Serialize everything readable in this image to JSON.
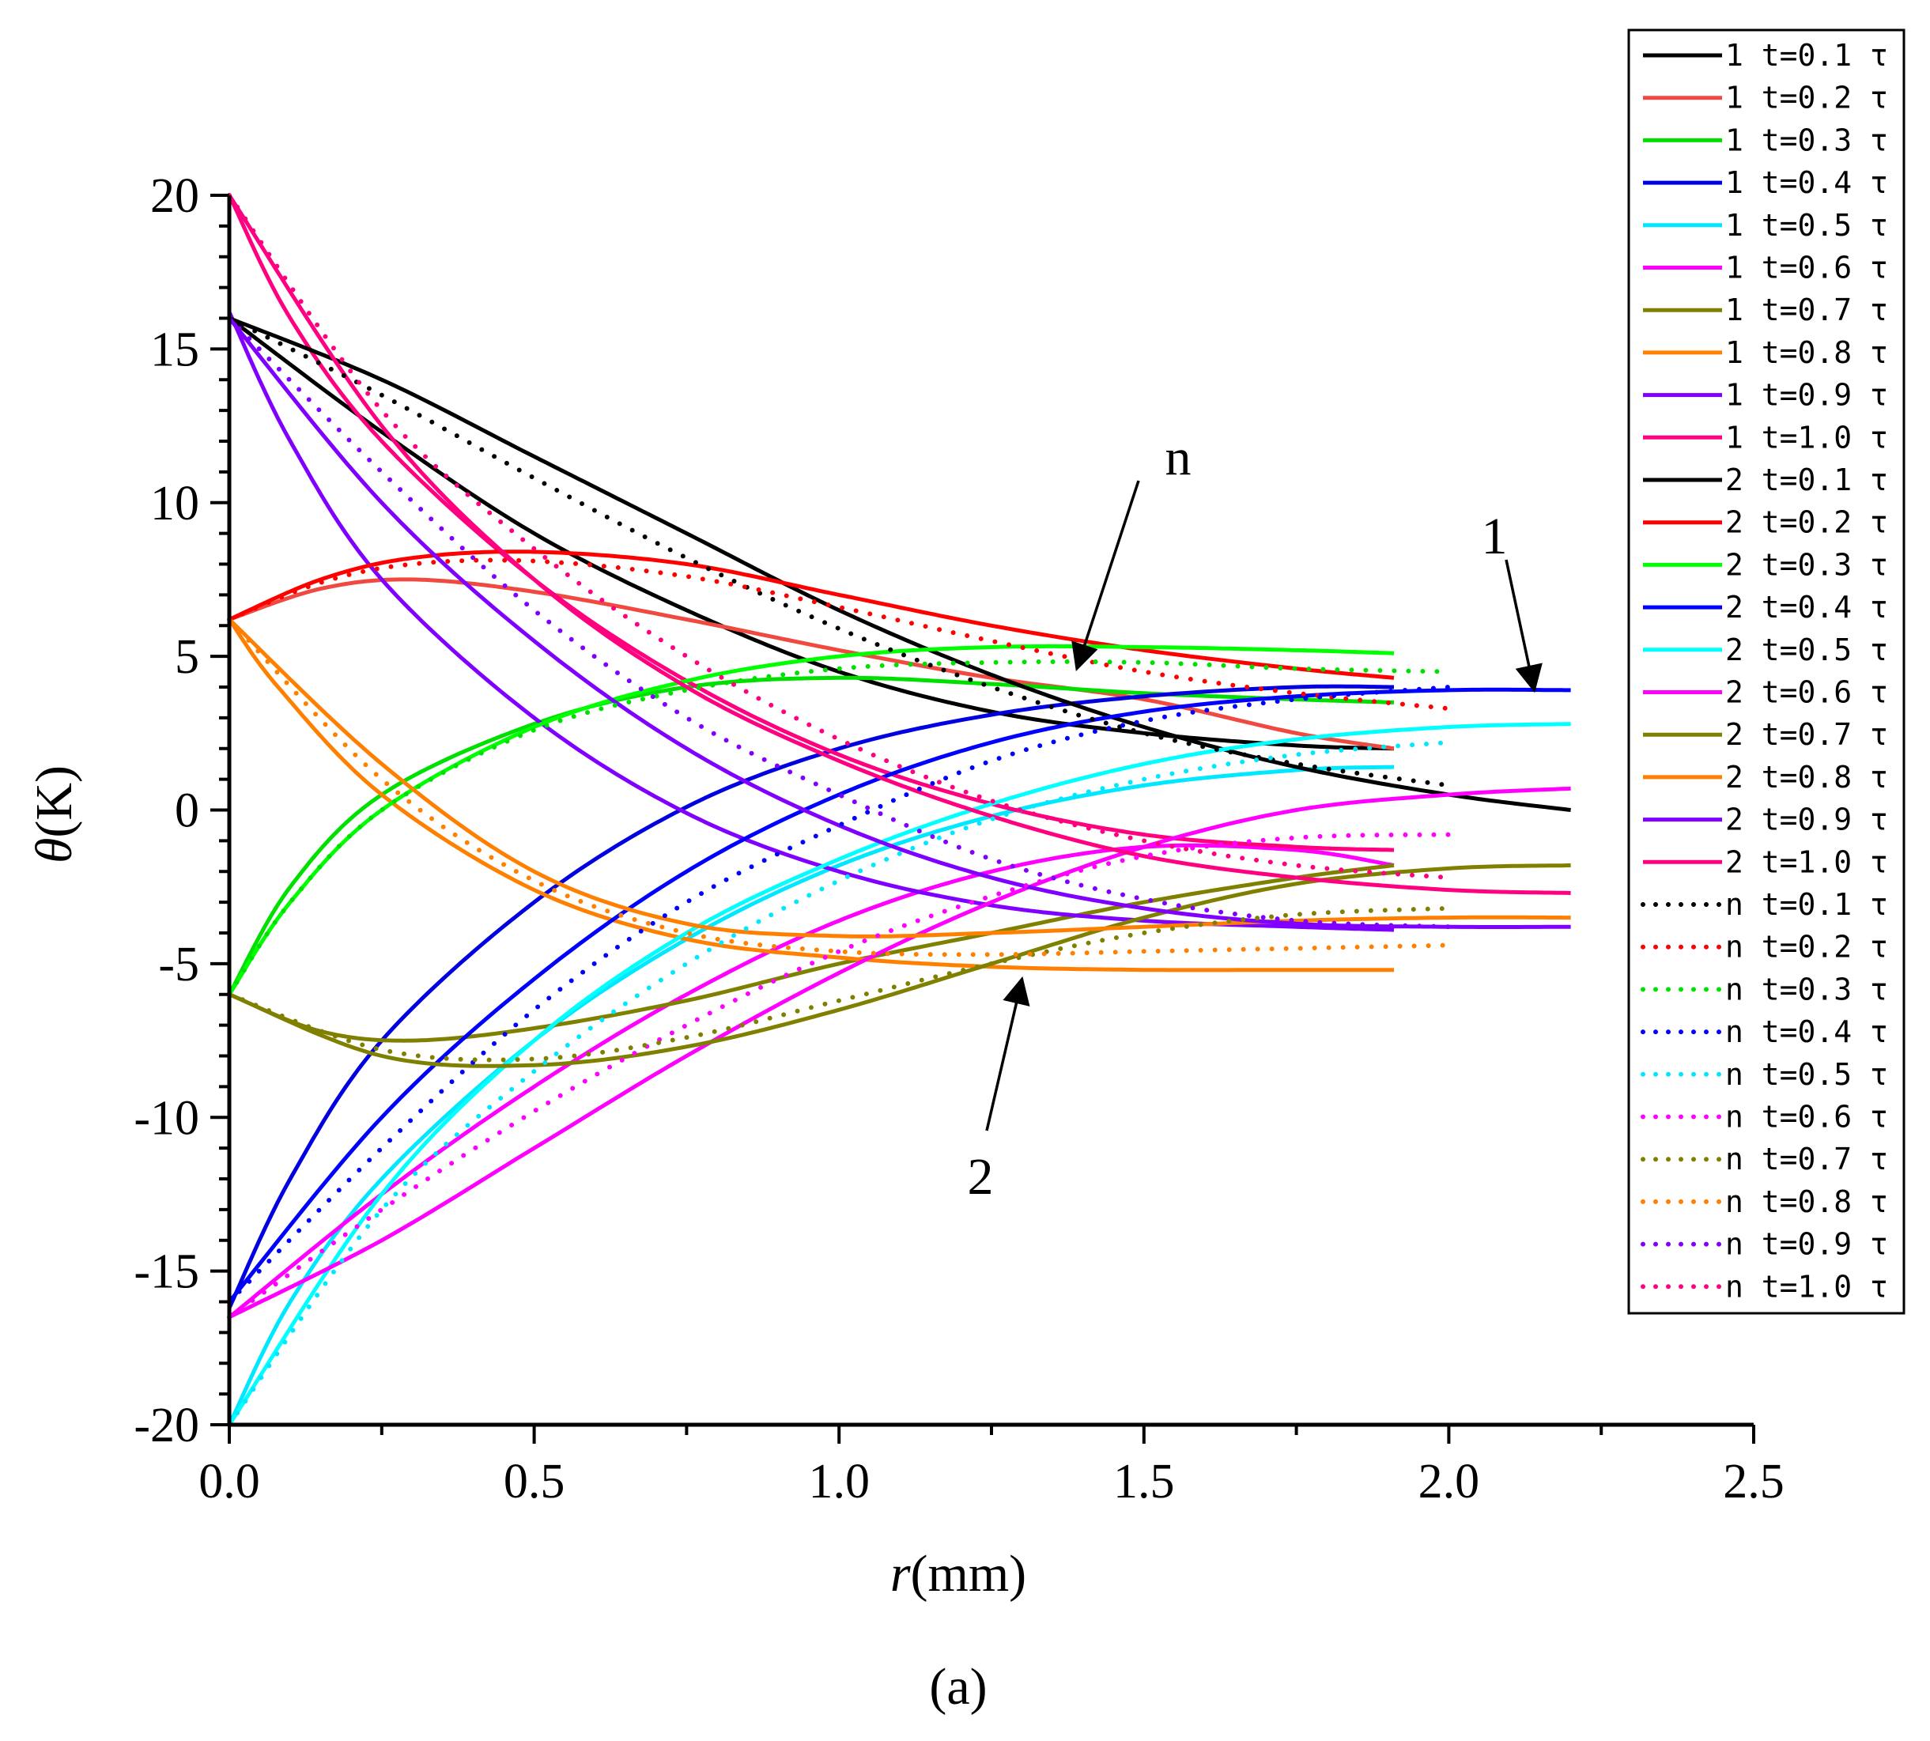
{
  "chart_data": {
    "type": "line",
    "title": "",
    "panel_label": "(a)",
    "xlabel_var": "r",
    "xlabel_unit": "(mm)",
    "ylabel_var": "θ",
    "ylabel_unit": "(K)",
    "xlim": [
      0,
      2.5
    ],
    "ylim": [
      -20,
      20
    ],
    "x_ticks": [
      "0.0",
      "0.5",
      "1.0",
      "1.5",
      "2.0",
      "2.5"
    ],
    "y_ticks": [
      "-20",
      "-15",
      "-10",
      "-5",
      "0",
      "5",
      "10",
      "15",
      "20"
    ],
    "grid": false,
    "legend_position": "right",
    "annotations": [
      {
        "text": "n",
        "points_to": [
          1.39,
          4.6
        ]
      },
      {
        "text": "1",
        "points_to": [
          2.14,
          3.9
        ]
      },
      {
        "text": "2",
        "points_to": [
          1.3,
          -5.5
        ]
      }
    ],
    "series": [
      {
        "name": "1  t=0.1 τ",
        "group": "1",
        "color": "#000000",
        "style": "solid",
        "x": [
          0,
          0.25,
          0.5,
          0.75,
          1.0,
          1.25,
          1.5,
          1.75,
          1.91
        ],
        "y": [
          16.0,
          12.3,
          9.0,
          6.5,
          4.5,
          3.2,
          2.5,
          2.1,
          2.0
        ]
      },
      {
        "name": "1  t=0.2 τ",
        "group": "1",
        "color": "#f04a40",
        "style": "solid",
        "x": [
          0,
          0.15,
          0.3,
          0.5,
          0.75,
          1.0,
          1.25,
          1.5,
          1.75,
          1.91
        ],
        "y": [
          6.2,
          7.2,
          7.5,
          7.1,
          6.2,
          5.2,
          4.3,
          3.6,
          2.5,
          2.0
        ]
      },
      {
        "name": "1  t=0.3 τ",
        "group": "1",
        "color": "#00e000",
        "style": "solid",
        "x": [
          0,
          0.1,
          0.25,
          0.5,
          0.75,
          1.0,
          1.25,
          1.5,
          1.75,
          1.91
        ],
        "y": [
          -6.0,
          -2.5,
          0.5,
          2.8,
          4.0,
          4.3,
          4.1,
          3.8,
          3.6,
          3.5
        ]
      },
      {
        "name": "1  t=0.4 τ",
        "group": "1",
        "color": "#0000e0",
        "style": "solid",
        "x": [
          0,
          0.1,
          0.25,
          0.5,
          0.75,
          1.0,
          1.25,
          1.5,
          1.75,
          1.91
        ],
        "y": [
          -16.2,
          -12.0,
          -7.5,
          -3.0,
          0.1,
          2.0,
          3.1,
          3.7,
          4.0,
          4.0
        ]
      },
      {
        "name": "1  t=0.5 τ",
        "group": "1",
        "color": "#00e8ff",
        "style": "solid",
        "x": [
          0,
          0.1,
          0.25,
          0.5,
          0.75,
          1.0,
          1.25,
          1.5,
          1.75,
          1.91
        ],
        "y": [
          -20.0,
          -16.0,
          -12.0,
          -7.5,
          -4.2,
          -1.8,
          -0.2,
          0.8,
          1.3,
          1.4
        ]
      },
      {
        "name": "1  t=0.6 τ",
        "group": "1",
        "color": "#ff00ff",
        "style": "solid",
        "x": [
          0,
          0.25,
          0.5,
          0.75,
          1.0,
          1.25,
          1.5,
          1.75,
          1.91
        ],
        "y": [
          -16.5,
          -12.5,
          -9.0,
          -6.0,
          -3.6,
          -2.0,
          -1.2,
          -1.3,
          -1.8
        ]
      },
      {
        "name": "1  t=0.7 τ",
        "group": "1",
        "color": "#808000",
        "style": "solid",
        "x": [
          0,
          0.15,
          0.3,
          0.5,
          0.75,
          1.0,
          1.25,
          1.5,
          1.75,
          1.91
        ],
        "y": [
          -6.0,
          -7.2,
          -7.5,
          -7.1,
          -6.2,
          -5.0,
          -4.0,
          -3.0,
          -2.2,
          -1.8
        ]
      },
      {
        "name": "1  t=0.8 τ",
        "group": "1",
        "color": "#ff8000",
        "style": "solid",
        "x": [
          0,
          0.08,
          0.25,
          0.5,
          0.75,
          1.0,
          1.25,
          1.5,
          1.75,
          1.91
        ],
        "y": [
          6.2,
          4.0,
          0.5,
          -2.6,
          -4.2,
          -4.8,
          -5.1,
          -5.2,
          -5.2,
          -5.2
        ]
      },
      {
        "name": "1  t=0.9 τ",
        "group": "1",
        "color": "#8000ff",
        "style": "solid",
        "x": [
          0,
          0.1,
          0.25,
          0.5,
          0.75,
          1.0,
          1.25,
          1.5,
          1.75,
          1.91
        ],
        "y": [
          16.2,
          12.0,
          7.5,
          3.0,
          -0.1,
          -2.0,
          -3.1,
          -3.6,
          -3.8,
          -3.9
        ]
      },
      {
        "name": "1  t=1.0 τ",
        "group": "1",
        "color": "#ff007f",
        "style": "solid",
        "x": [
          0,
          0.1,
          0.25,
          0.5,
          0.75,
          1.0,
          1.25,
          1.5,
          1.75,
          1.91
        ],
        "y": [
          20.0,
          16.0,
          12.0,
          7.5,
          4.2,
          1.8,
          0.2,
          -0.8,
          -1.2,
          -1.3
        ]
      },
      {
        "name": "2  t=0.1 τ",
        "group": "2",
        "color": "#000000",
        "style": "solid",
        "x": [
          0,
          0.25,
          0.5,
          0.75,
          1.0,
          1.25,
          1.5,
          1.75,
          2.0,
          2.2
        ],
        "y": [
          16.0,
          14.0,
          11.5,
          9.0,
          6.5,
          4.4,
          2.7,
          1.4,
          0.5,
          0.0
        ]
      },
      {
        "name": "2  t=0.2 τ",
        "group": "2",
        "color": "#ff0000",
        "style": "solid",
        "x": [
          0,
          0.15,
          0.3,
          0.5,
          0.75,
          1.0,
          1.25,
          1.5,
          1.75,
          1.91
        ],
        "y": [
          6.2,
          7.5,
          8.2,
          8.4,
          8.0,
          7.0,
          6.0,
          5.2,
          4.6,
          4.3
        ]
      },
      {
        "name": "2  t=0.3 τ",
        "group": "2",
        "color": "#00ff00",
        "style": "solid",
        "x": [
          0,
          0.1,
          0.25,
          0.5,
          0.75,
          1.0,
          1.25,
          1.5,
          1.75,
          1.91
        ],
        "y": [
          -6.0,
          -3.0,
          0.0,
          2.7,
          4.2,
          5.0,
          5.3,
          5.3,
          5.2,
          5.1
        ]
      },
      {
        "name": "2  t=0.4 τ",
        "group": "2",
        "color": "#0000ff",
        "style": "solid",
        "x": [
          0,
          0.25,
          0.5,
          0.75,
          1.0,
          1.25,
          1.5,
          1.75,
          2.0,
          2.2
        ],
        "y": [
          -16.0,
          -10.0,
          -5.5,
          -2.0,
          0.5,
          2.2,
          3.2,
          3.7,
          3.9,
          3.9
        ]
      },
      {
        "name": "2  t=0.5 τ",
        "group": "2",
        "color": "#00ffff",
        "style": "solid",
        "x": [
          0,
          0.25,
          0.5,
          0.75,
          1.0,
          1.25,
          1.5,
          1.75,
          2.0,
          2.2
        ],
        "y": [
          -20.0,
          -12.5,
          -7.5,
          -4.0,
          -1.6,
          0.2,
          1.5,
          2.3,
          2.7,
          2.8
        ]
      },
      {
        "name": "2  t=0.6 τ",
        "group": "2",
        "color": "#ff00ff",
        "style": "solid",
        "x": [
          0,
          0.25,
          0.5,
          0.75,
          1.0,
          1.25,
          1.5,
          1.75,
          2.0,
          2.2
        ],
        "y": [
          -16.5,
          -14.0,
          -11.0,
          -8.0,
          -5.3,
          -3.0,
          -1.2,
          0.0,
          0.5,
          0.7
        ]
      },
      {
        "name": "2  t=0.7 τ",
        "group": "2",
        "color": "#808000",
        "style": "solid",
        "x": [
          0,
          0.25,
          0.5,
          0.75,
          1.0,
          1.25,
          1.5,
          1.75,
          2.0,
          2.2
        ],
        "y": [
          -6.0,
          -8.0,
          -8.3,
          -7.7,
          -6.5,
          -5.0,
          -3.5,
          -2.4,
          -1.9,
          -1.8
        ]
      },
      {
        "name": "2  t=0.8 τ",
        "group": "2",
        "color": "#ff7f00",
        "style": "solid",
        "x": [
          0,
          0.25,
          0.5,
          0.75,
          1.0,
          1.25,
          1.5,
          1.75,
          2.0,
          2.2
        ],
        "y": [
          6.2,
          1.5,
          -2.0,
          -3.7,
          -4.1,
          -4.0,
          -3.8,
          -3.6,
          -3.5,
          -3.5
        ]
      },
      {
        "name": "2  t=0.9 τ",
        "group": "2",
        "color": "#7f00ff",
        "style": "solid",
        "x": [
          0,
          0.25,
          0.5,
          0.75,
          1.0,
          1.25,
          1.5,
          1.75,
          2.0,
          2.2
        ],
        "y": [
          16.0,
          10.0,
          5.5,
          2.0,
          -0.5,
          -2.2,
          -3.2,
          -3.7,
          -3.8,
          -3.8
        ]
      },
      {
        "name": "2  t=1.0 τ",
        "group": "2",
        "color": "#ff0080",
        "style": "solid",
        "x": [
          0,
          0.25,
          0.5,
          0.75,
          1.0,
          1.25,
          1.5,
          1.75,
          2.0,
          2.2
        ],
        "y": [
          20.0,
          12.5,
          7.5,
          4.0,
          1.6,
          -0.2,
          -1.5,
          -2.2,
          -2.6,
          -2.7
        ]
      },
      {
        "name": "n  t=0.1 τ",
        "group": "n",
        "color": "#000000",
        "style": "dotted",
        "x": [
          0,
          0.25,
          0.5,
          0.75,
          1.0,
          1.25,
          1.5,
          1.75,
          2.0
        ],
        "y": [
          16.0,
          13.5,
          10.8,
          8.2,
          5.9,
          4.0,
          2.5,
          1.5,
          0.8
        ]
      },
      {
        "name": "n  t=0.2 τ",
        "group": "n",
        "color": "#ff0000",
        "style": "dotted",
        "x": [
          0,
          0.15,
          0.3,
          0.5,
          0.75,
          1.0,
          1.25,
          1.5,
          1.75,
          2.0
        ],
        "y": [
          6.2,
          7.4,
          8.0,
          8.1,
          7.6,
          6.6,
          5.5,
          4.5,
          3.8,
          3.3
        ]
      },
      {
        "name": "n  t=0.3 τ",
        "group": "n",
        "color": "#00e000",
        "style": "dotted",
        "x": [
          0,
          0.1,
          0.25,
          0.5,
          0.75,
          1.0,
          1.25,
          1.5,
          1.75,
          2.0
        ],
        "y": [
          -6.0,
          -3.0,
          0.0,
          2.6,
          3.9,
          4.6,
          4.8,
          4.8,
          4.6,
          4.5
        ]
      },
      {
        "name": "n  t=0.4 τ",
        "group": "n",
        "color": "#0000ff",
        "style": "dotted",
        "x": [
          0,
          0.25,
          0.5,
          0.75,
          1.0,
          1.25,
          1.5,
          1.75,
          2.0
        ],
        "y": [
          -16.0,
          -11.0,
          -6.5,
          -3.0,
          -0.5,
          1.6,
          2.9,
          3.6,
          4.0
        ]
      },
      {
        "name": "n  t=0.5 τ",
        "group": "n",
        "color": "#00e8ff",
        "style": "dotted",
        "x": [
          0,
          0.25,
          0.5,
          0.75,
          1.0,
          1.25,
          1.5,
          1.75,
          2.0
        ],
        "y": [
          -20.0,
          -13.0,
          -8.5,
          -5.0,
          -2.3,
          -0.3,
          1.0,
          1.8,
          2.2
        ]
      },
      {
        "name": "n  t=0.6 τ",
        "group": "n",
        "color": "#ff00ff",
        "style": "dotted",
        "x": [
          0,
          0.25,
          0.5,
          0.75,
          1.0,
          1.25,
          1.5,
          1.75,
          2.0
        ],
        "y": [
          -16.5,
          -13.0,
          -9.8,
          -7.0,
          -4.6,
          -2.8,
          -1.5,
          -0.9,
          -0.8
        ]
      },
      {
        "name": "n  t=0.7 τ",
        "group": "n",
        "color": "#808000",
        "style": "dotted",
        "x": [
          0,
          0.25,
          0.5,
          0.75,
          1.0,
          1.25,
          1.5,
          1.75,
          2.0
        ],
        "y": [
          -6.0,
          -7.8,
          -8.1,
          -7.4,
          -6.2,
          -5.0,
          -4.0,
          -3.4,
          -3.2
        ]
      },
      {
        "name": "n  t=0.8 τ",
        "group": "n",
        "color": "#ff8000",
        "style": "dotted",
        "x": [
          0,
          0.25,
          0.5,
          0.75,
          1.0,
          1.25,
          1.5,
          1.75,
          2.0
        ],
        "y": [
          6.2,
          1.0,
          -2.3,
          -4.0,
          -4.6,
          -4.7,
          -4.6,
          -4.5,
          -4.4
        ]
      },
      {
        "name": "n  t=0.9 τ",
        "group": "n",
        "color": "#8000ff",
        "style": "dotted",
        "x": [
          0,
          0.25,
          0.5,
          0.75,
          1.0,
          1.25,
          1.5,
          1.75,
          2.0
        ],
        "y": [
          16.0,
          11.0,
          6.5,
          3.0,
          0.5,
          -1.6,
          -2.9,
          -3.6,
          -3.8
        ]
      },
      {
        "name": "n  t=1.0 τ",
        "group": "n",
        "color": "#ff0080",
        "style": "dotted",
        "x": [
          0,
          0.25,
          0.5,
          0.75,
          1.0,
          1.25,
          1.5,
          1.75,
          2.0
        ],
        "y": [
          20.0,
          13.0,
          8.5,
          5.0,
          2.3,
          0.3,
          -1.0,
          -1.8,
          -2.2
        ]
      }
    ]
  }
}
